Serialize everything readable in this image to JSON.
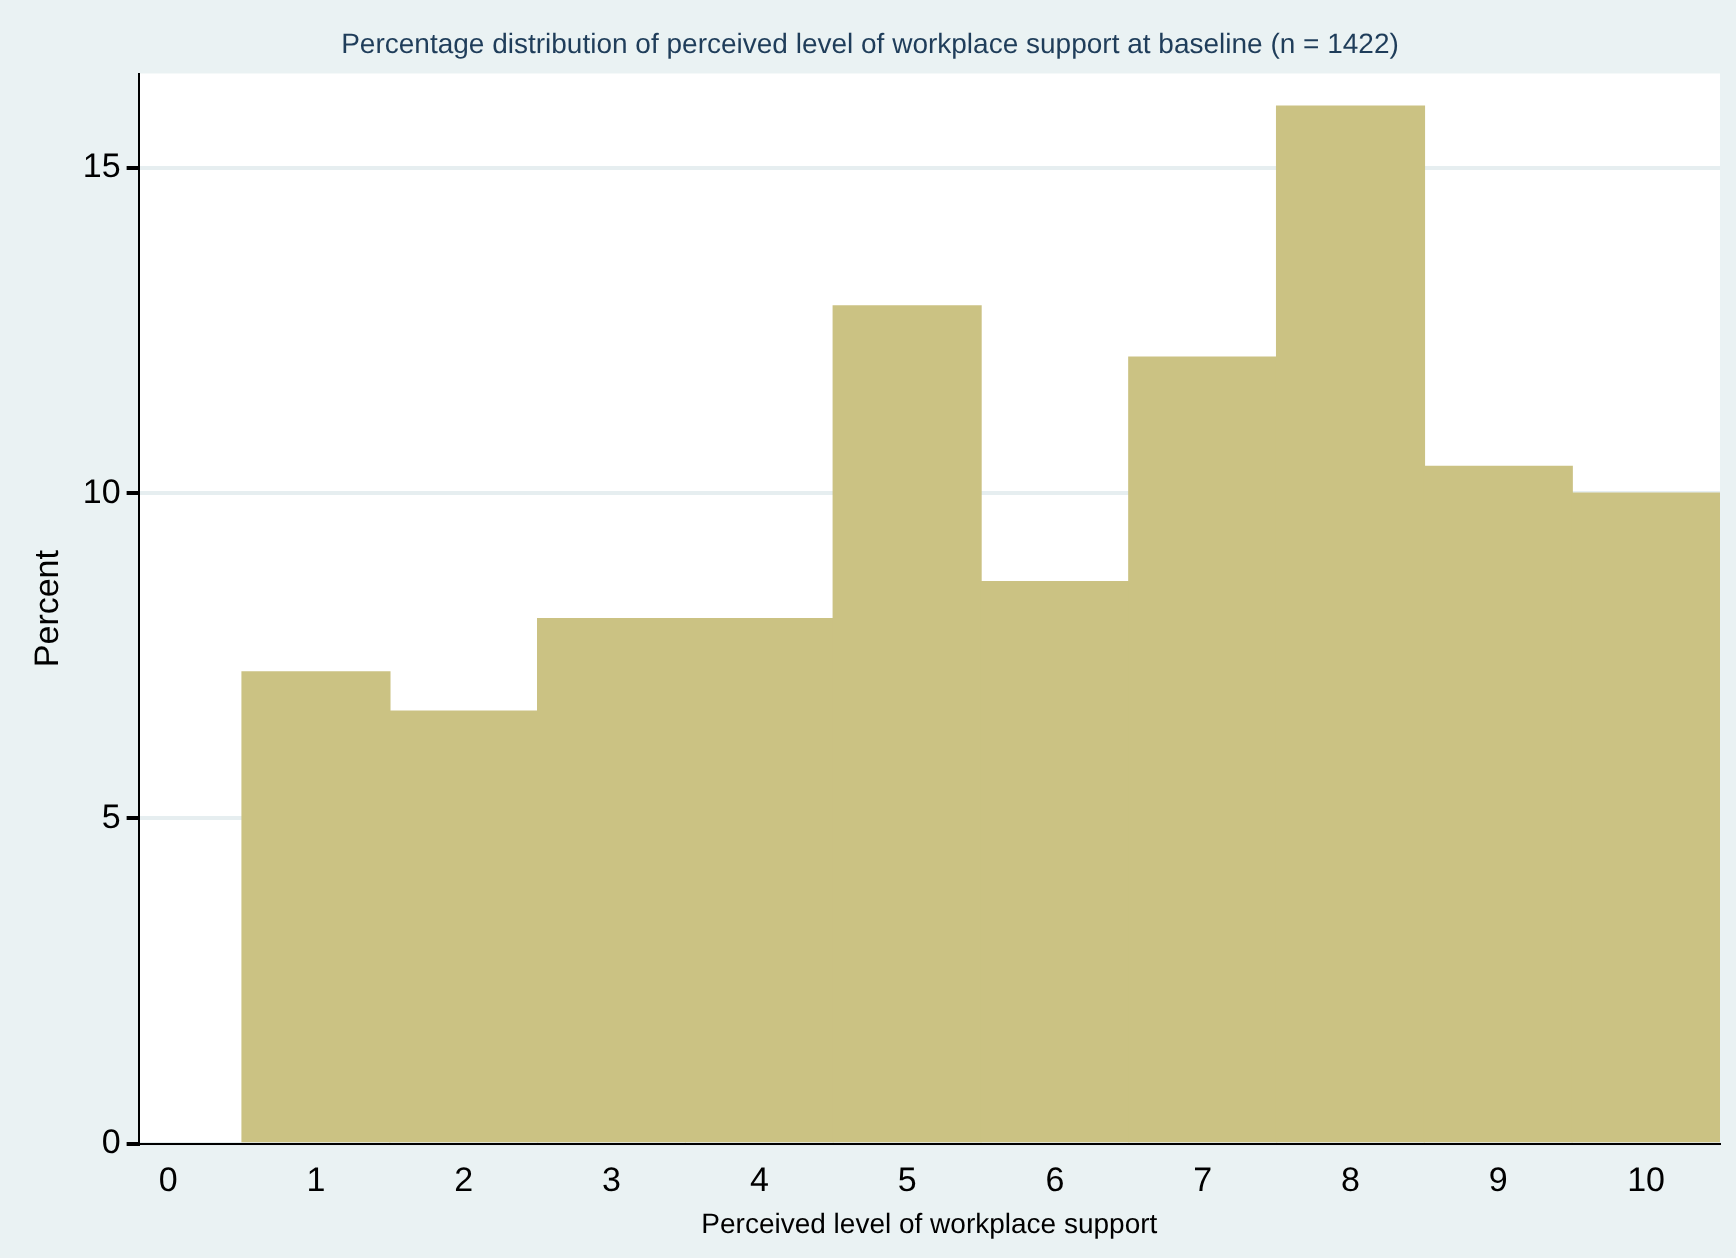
{
  "chart_data": {
    "type": "histogram",
    "title": "Percentage distribution of perceived level of workplace support at baseline (n = 1422)",
    "xlabel": "Perceived level of workplace support",
    "ylabel": "Percent",
    "bins": [
      0.5,
      1.5,
      2.5,
      3.5,
      4.5,
      5.5,
      6.5,
      7.5,
      8.5,
      9.5,
      10.5
    ],
    "values": [
      7.25,
      6.65,
      8.07,
      8.07,
      12.88,
      8.64,
      12.09,
      15.95,
      10.41,
      10.0
    ],
    "color": "#cbc283",
    "xlim": [
      -0.2,
      10.5
    ],
    "xticks": [
      0,
      1,
      2,
      3,
      4,
      5,
      6,
      7,
      8,
      9,
      10
    ],
    "ylim": [
      0,
      16.45
    ],
    "yticks": [
      0,
      5,
      10,
      15
    ],
    "grid": "y"
  }
}
